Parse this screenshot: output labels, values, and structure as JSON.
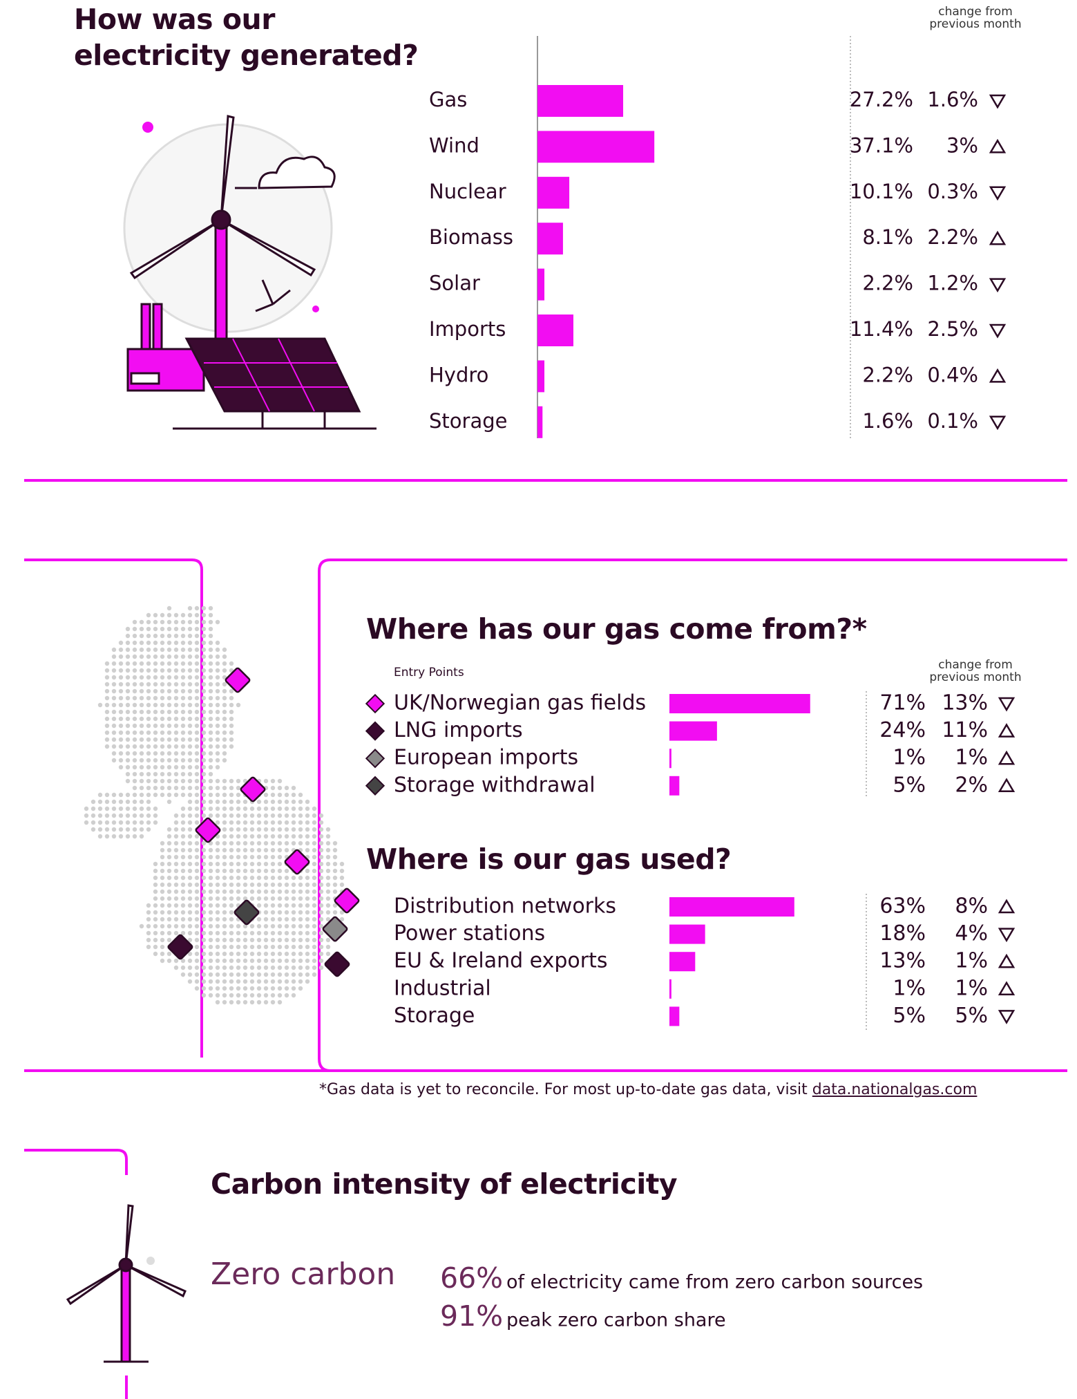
{
  "chart_data": [
    {
      "type": "bar",
      "orientation": "horizontal",
      "title": "How was our electricity generated?",
      "change_header": "change from previous month",
      "categories": [
        "Gas",
        "Wind",
        "Nuclear",
        "Biomass",
        "Solar",
        "Imports",
        "Hydro",
        "Storage"
      ],
      "values": [
        27.2,
        37.1,
        10.1,
        8.1,
        2.2,
        11.4,
        2.2,
        1.6
      ],
      "value_labels": [
        "27.2%",
        "37.1%",
        "10.1%",
        "8.1%",
        "2.2%",
        "11.4%",
        "2.2%",
        "1.6%"
      ],
      "change_values": [
        1.6,
        3,
        0.3,
        2.2,
        1.2,
        2.5,
        0.4,
        0.1
      ],
      "change_labels": [
        "1.6%",
        "3%",
        "0.3%",
        "2.2%",
        "1.2%",
        "2.5%",
        "0.4%",
        "0.1%"
      ],
      "change_directions": [
        "down",
        "up",
        "down",
        "up",
        "down",
        "down",
        "up",
        "down"
      ],
      "color": "#f20df2"
    },
    {
      "type": "bar",
      "orientation": "horizontal",
      "title": "Where has our gas come from?*",
      "legend_title": "Entry Points",
      "change_header": "change from previous month",
      "categories": [
        "UK/Norwegian gas fields",
        "LNG imports",
        "European imports",
        "Storage withdrawal"
      ],
      "marker_colors": [
        "#f20df2",
        "#3a0a30",
        "#8a8a8a",
        "#444444"
      ],
      "values": [
        71,
        24,
        1,
        5
      ],
      "value_labels": [
        "71%",
        "24%",
        "1%",
        "5%"
      ],
      "change_values": [
        13,
        11,
        1,
        2
      ],
      "change_labels": [
        "13%",
        "11%",
        "1%",
        "2%"
      ],
      "change_directions": [
        "down",
        "up",
        "up",
        "up"
      ],
      "color": "#f20df2"
    },
    {
      "type": "bar",
      "orientation": "horizontal",
      "title": "Where is our gas used?",
      "categories": [
        "Distribution networks",
        "Power stations",
        "EU & Ireland exports",
        "Industrial",
        "Storage"
      ],
      "values": [
        63,
        18,
        13,
        1,
        5
      ],
      "value_labels": [
        "63%",
        "18%",
        "13%",
        "1%",
        "5%"
      ],
      "change_values": [
        8,
        4,
        1,
        1,
        5
      ],
      "change_labels": [
        "8%",
        "4%",
        "1%",
        "1%",
        "5%"
      ],
      "change_directions": [
        "up",
        "down",
        "up",
        "up",
        "down"
      ],
      "color": "#f20df2"
    }
  ],
  "footnote": "*Gas data is yet to reconcile. For most up-to-date gas data, visit ",
  "footnote_link": "data.nationalgas.com",
  "carbon": {
    "title": "Carbon intensity of electricity",
    "label": "Zero carbon",
    "stats": [
      {
        "value": "66%",
        "text": "of electricity came from zero carbon sources"
      },
      {
        "value": "91%",
        "text": "peak zero carbon share"
      }
    ]
  }
}
